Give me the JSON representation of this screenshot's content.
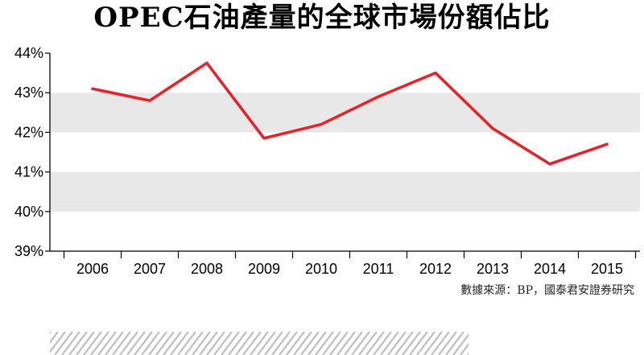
{
  "title": "OPEC石油產量的全球市場份額佔比",
  "source": "數據來源：BP，國泰君安證券研究",
  "colors": {
    "line": "#e4232b",
    "band": "#e8e8e9",
    "axis": "#000000"
  },
  "chart_data": {
    "type": "line",
    "title": "OPEC石油產量的全球市場份額佔比",
    "xlabel": "",
    "ylabel": "",
    "categories": [
      "2006",
      "2007",
      "2008",
      "2009",
      "2010",
      "2011",
      "2012",
      "2013",
      "2014",
      "2015"
    ],
    "series": [
      {
        "values": [
          43.1,
          42.8,
          43.75,
          41.85,
          42.2,
          42.9,
          43.5,
          42.1,
          41.2,
          41.7
        ]
      }
    ],
    "ylim": [
      39,
      44
    ],
    "yticks": [
      "39%",
      "40%",
      "41%",
      "42%",
      "43%",
      "44%"
    ],
    "grid": "alternating horizontal bands",
    "legend": "none"
  }
}
